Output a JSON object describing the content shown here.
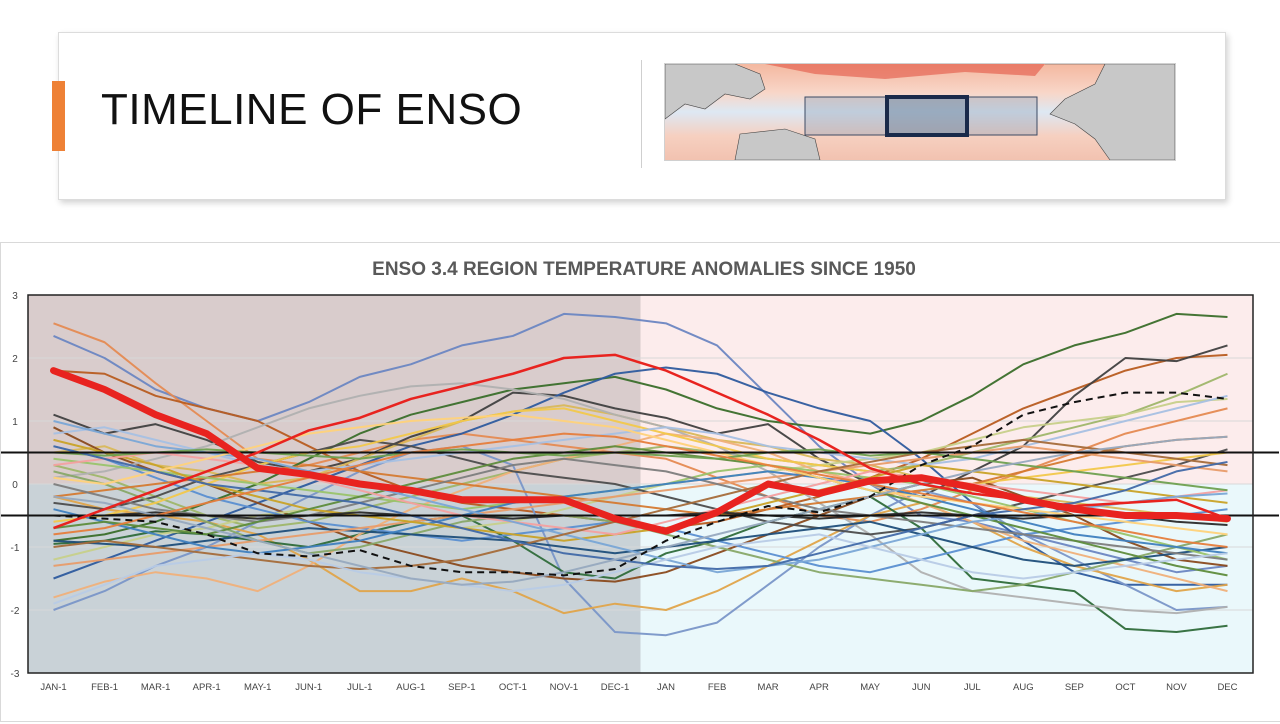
{
  "header": {
    "title": "TIMELINE OF ENSO",
    "accent_color": "#ee8136",
    "map_alt": "Pacific sea surface temperature anomaly map with ENSO 3.4 region box"
  },
  "chart_data": {
    "type": "line",
    "title": "ENSO 3.4 REGION TEMPERATURE ANOMALIES SINCE 1950",
    "xlabel": "",
    "ylabel": "",
    "categories": [
      "JAN-1",
      "FEB-1",
      "MAR-1",
      "APR-1",
      "MAY-1",
      "JUN-1",
      "JUL-1",
      "AUG-1",
      "SEP-1",
      "OCT-1",
      "NOV-1",
      "DEC-1",
      "JAN",
      "FEB",
      "MAR",
      "APR",
      "MAY",
      "JUN",
      "JUL",
      "AUG",
      "SEP",
      "OCT",
      "NOV",
      "DEC"
    ],
    "ylim": [
      -3,
      3
    ],
    "yticks": [
      "3",
      "2",
      "1",
      "0",
      "-1",
      "-2",
      "-3"
    ],
    "thresholds": [
      0.5,
      -0.5
    ],
    "background_regions": [
      {
        "from_index": 0,
        "to_index": 11.5,
        "top_color": "#d9cccc",
        "bottom_color": "#c9d2d7"
      },
      {
        "from_index": 11.5,
        "to_index": 23,
        "top_color": "#fcecec",
        "bottom_color": "#eaf8fb"
      }
    ],
    "highlight_series": {
      "name": "current",
      "color": "#e8231f",
      "values": [
        1.8,
        1.5,
        1.1,
        0.8,
        0.25,
        0.15,
        0.0,
        -0.1,
        -0.25,
        -0.25,
        -0.25,
        -0.55,
        -0.75,
        -0.45,
        0.0,
        -0.15,
        0.05,
        0.1,
        -0.05,
        -0.25,
        -0.4,
        -0.5,
        -0.5,
        -0.55
      ]
    },
    "secondary_red_series": {
      "name": "red-thin",
      "color": "#e8231f",
      "values": [
        -0.7,
        -0.4,
        -0.1,
        0.2,
        0.5,
        0.85,
        1.05,
        1.35,
        1.55,
        1.75,
        2.0,
        2.05,
        1.8,
        1.45,
        1.1,
        0.7,
        0.25,
        0.0,
        -0.15,
        -0.25,
        -0.35,
        -0.3,
        -0.25,
        -0.55
      ]
    },
    "dashed_series": {
      "name": "dashed",
      "color": "#111111",
      "values": [
        -0.5,
        -0.55,
        -0.6,
        -0.8,
        -1.1,
        -1.15,
        -1.05,
        -1.3,
        -1.4,
        -1.4,
        -1.45,
        -1.35,
        -0.9,
        -0.6,
        -0.35,
        -0.45,
        -0.2,
        0.3,
        0.6,
        1.1,
        1.3,
        1.45,
        1.45,
        1.35
      ]
    },
    "series": [
      {
        "color": "#6b86c2",
        "values": [
          2.35,
          2.0,
          1.5,
          1.2,
          1.0,
          1.3,
          1.7,
          1.9,
          2.2,
          2.35,
          2.7,
          2.65,
          2.55,
          2.2,
          1.4,
          0.6,
          0.0,
          -0.5,
          -0.6,
          -0.8,
          -1.0,
          -1.2,
          -1.4,
          -1.3
        ]
      },
      {
        "color": "#e58a52",
        "values": [
          2.55,
          2.25,
          1.6,
          1.0,
          0.4,
          0.3,
          0.5,
          0.7,
          0.8,
          0.7,
          0.6,
          0.5,
          0.4,
          0.1,
          -0.2,
          -0.5,
          -0.6,
          -0.4,
          -0.1,
          0.2,
          0.5,
          0.8,
          1.0,
          1.2
        ]
      },
      {
        "color": "#b85c20",
        "values": [
          1.8,
          1.75,
          1.4,
          1.2,
          1.0,
          0.6,
          0.2,
          -0.1,
          -0.3,
          -0.4,
          -0.5,
          -0.6,
          -0.7,
          -0.6,
          -0.4,
          -0.2,
          0.1,
          0.4,
          0.8,
          1.2,
          1.5,
          1.8,
          2.0,
          2.05
        ]
      },
      {
        "color": "#404040",
        "values": [
          1.1,
          0.8,
          0.95,
          0.7,
          0.35,
          0.2,
          0.4,
          0.75,
          1.0,
          1.45,
          1.4,
          1.2,
          1.05,
          0.8,
          0.95,
          0.4,
          0.0,
          -0.2,
          0.2,
          0.6,
          1.4,
          2.0,
          1.95,
          2.2
        ]
      },
      {
        "color": "#3a6e2a",
        "values": [
          -0.9,
          -0.8,
          -0.6,
          -0.3,
          0.0,
          0.4,
          0.8,
          1.1,
          1.3,
          1.5,
          1.6,
          1.7,
          1.5,
          1.2,
          1.0,
          0.9,
          0.8,
          1.0,
          1.4,
          1.9,
          2.2,
          2.4,
          2.7,
          2.65
        ]
      },
      {
        "color": "#9fb66a",
        "values": [
          0.3,
          0.1,
          -0.2,
          -0.5,
          -0.7,
          -0.6,
          -0.4,
          -0.2,
          0.0,
          0.2,
          0.4,
          0.5,
          0.6,
          0.5,
          0.4,
          0.3,
          0.2,
          0.3,
          0.5,
          0.7,
          0.9,
          1.1,
          1.4,
          1.75
        ]
      },
      {
        "color": "#2e5b9e",
        "values": [
          -1.5,
          -1.2,
          -0.9,
          -0.6,
          -0.3,
          0.0,
          0.3,
          0.6,
          0.8,
          1.1,
          1.45,
          1.75,
          1.85,
          1.75,
          1.45,
          1.2,
          1.0,
          0.4,
          -0.3,
          -0.9,
          -1.4,
          -1.6,
          -1.6,
          -1.6
        ]
      },
      {
        "color": "#7a96c8",
        "values": [
          -2.0,
          -1.7,
          -1.3,
          -1.0,
          -0.6,
          -0.2,
          0.2,
          0.5,
          0.6,
          0.3,
          -1.5,
          -2.35,
          -2.4,
          -2.2,
          -1.6,
          -1.0,
          -0.5,
          -0.1,
          -0.3,
          -0.8,
          -1.2,
          -1.6,
          -2.0,
          -1.95
        ]
      },
      {
        "color": "#e0a44a",
        "values": [
          -0.2,
          -0.4,
          -0.5,
          -0.6,
          -0.8,
          -1.2,
          -1.7,
          -1.7,
          -1.5,
          -1.7,
          -2.05,
          -1.9,
          -2.0,
          -1.7,
          -1.3,
          -0.9,
          -0.5,
          -0.3,
          -0.6,
          -1.0,
          -1.3,
          -1.5,
          -1.7,
          -1.6
        ]
      },
      {
        "color": "#2f6b3a",
        "values": [
          -0.95,
          -0.9,
          -0.75,
          -0.8,
          -0.9,
          -1.0,
          -0.8,
          -0.6,
          -0.5,
          -0.9,
          -1.4,
          -1.5,
          -1.1,
          -0.9,
          -0.6,
          -0.4,
          -0.2,
          -0.7,
          -1.5,
          -1.6,
          -1.7,
          -2.3,
          -2.35,
          -2.25
        ]
      },
      {
        "color": "#d9b85a",
        "values": [
          0.5,
          0.6,
          0.3,
          0.2,
          0.0,
          0.1,
          0.4,
          0.7,
          1.0,
          1.15,
          1.25,
          1.1,
          0.9,
          0.7,
          0.6,
          0.4,
          0.3,
          0.1,
          -0.1,
          -0.2,
          -0.3,
          -0.4,
          -0.5,
          -0.6
        ]
      },
      {
        "color": "#8a4a1e",
        "values": [
          0.9,
          0.5,
          0.2,
          0.0,
          -0.3,
          -0.6,
          -0.9,
          -1.1,
          -1.3,
          -1.4,
          -1.5,
          -1.55,
          -1.4,
          -1.1,
          -0.8,
          -0.5,
          -0.2,
          0.0,
          0.1,
          -0.2,
          -0.5,
          -0.9,
          -1.2,
          -1.3
        ]
      },
      {
        "color": "#c7d08a",
        "values": [
          -1.2,
          -1.0,
          -0.8,
          -0.7,
          -0.5,
          -0.4,
          -0.5,
          -0.6,
          -0.7,
          -0.6,
          -0.4,
          -0.2,
          0.0,
          0.1,
          0.2,
          0.3,
          0.4,
          0.5,
          0.7,
          0.9,
          1.0,
          1.1,
          1.3,
          1.35
        ]
      },
      {
        "color": "#b0b0b0",
        "values": [
          0.1,
          0.2,
          0.4,
          0.6,
          0.9,
          1.2,
          1.4,
          1.55,
          1.6,
          1.5,
          1.35,
          1.1,
          0.9,
          0.6,
          0.2,
          -0.3,
          -0.8,
          -1.4,
          -1.7,
          -1.8,
          -1.9,
          -2.0,
          -2.05,
          -1.95
        ]
      },
      {
        "color": "#5b8fd1",
        "values": [
          0.6,
          0.4,
          0.1,
          -0.2,
          -0.4,
          -0.6,
          -0.7,
          -0.8,
          -0.9,
          -0.8,
          -0.7,
          -0.6,
          -0.7,
          -0.9,
          -1.1,
          -1.3,
          -1.4,
          -1.2,
          -1.0,
          -0.8,
          -0.7,
          -0.6,
          -0.5,
          -0.4
        ]
      },
      {
        "color": "#f0b07a",
        "values": [
          -1.8,
          -1.55,
          -1.4,
          -1.5,
          -1.7,
          -1.3,
          -0.8,
          -0.4,
          -0.1,
          0.2,
          0.4,
          0.6,
          0.8,
          0.7,
          0.5,
          0.2,
          0.0,
          -0.3,
          -0.6,
          -0.9,
          -1.1,
          -1.3,
          -1.5,
          -1.7
        ]
      },
      {
        "color": "#4c4c4c",
        "values": [
          -0.3,
          -0.4,
          -0.2,
          0.1,
          0.3,
          0.5,
          0.7,
          0.6,
          0.4,
          0.2,
          0.1,
          0.0,
          -0.2,
          -0.4,
          -0.6,
          -0.7,
          -0.8,
          -0.7,
          -0.5,
          -0.3,
          -0.1,
          0.1,
          0.3,
          0.55
        ]
      },
      {
        "color": "#88a868",
        "values": [
          0.2,
          0.0,
          -0.3,
          -0.6,
          -0.9,
          -1.1,
          -1.0,
          -0.8,
          -0.6,
          -0.5,
          -0.5,
          -0.6,
          -0.8,
          -1.0,
          -1.2,
          -1.4,
          -1.5,
          -1.6,
          -1.7,
          -1.6,
          -1.4,
          -1.2,
          -1.0,
          -0.8
        ]
      },
      {
        "color": "#f2c84b",
        "values": [
          -0.6,
          -0.5,
          -0.3,
          0.0,
          0.3,
          0.5,
          0.6,
          0.8,
          1.0,
          1.15,
          1.2,
          1.0,
          0.8,
          0.6,
          0.4,
          0.3,
          0.2,
          0.1,
          0.0,
          0.1,
          0.2,
          0.3,
          0.4,
          0.5
        ]
      },
      {
        "color": "#a7c0e3",
        "values": [
          0.8,
          0.9,
          0.7,
          0.5,
          0.3,
          0.2,
          0.3,
          0.4,
          0.5,
          0.6,
          0.7,
          0.8,
          0.9,
          0.8,
          0.6,
          0.5,
          0.4,
          0.3,
          0.4,
          0.6,
          0.8,
          1.0,
          1.2,
          1.4
        ]
      },
      {
        "color": "#d57a32",
        "values": [
          -0.2,
          -0.1,
          0.0,
          0.1,
          0.2,
          0.3,
          0.2,
          0.1,
          0.0,
          -0.1,
          -0.2,
          -0.3,
          -0.4,
          -0.5,
          -0.4,
          -0.3,
          -0.2,
          -0.1,
          0.0,
          0.2,
          0.4,
          0.6,
          0.7,
          0.75
        ]
      },
      {
        "color": "#1f4e7a",
        "values": [
          -0.9,
          -0.95,
          -1.0,
          -0.9,
          -0.8,
          -0.7,
          -0.75,
          -0.8,
          -0.85,
          -0.9,
          -1.0,
          -1.1,
          -1.0,
          -0.9,
          -0.8,
          -0.7,
          -0.6,
          -0.8,
          -1.0,
          -1.2,
          -1.3,
          -1.2,
          -1.1,
          -1.0
        ]
      },
      {
        "color": "#9ac36b",
        "values": [
          0.4,
          0.3,
          0.2,
          0.1,
          0.0,
          -0.1,
          -0.2,
          -0.3,
          -0.4,
          -0.3,
          -0.2,
          -0.1,
          0.0,
          0.2,
          0.3,
          0.2,
          0.1,
          0.0,
          -0.2,
          -0.4,
          -0.6,
          -0.8,
          -1.0,
          -1.2
        ]
      },
      {
        "color": "#e89c6a",
        "values": [
          -1.3,
          -1.2,
          -1.1,
          -1.0,
          -0.9,
          -0.8,
          -0.7,
          -0.6,
          -0.5,
          -0.4,
          -0.3,
          -0.2,
          -0.1,
          0.0,
          0.1,
          0.2,
          0.3,
          0.4,
          0.5,
          0.6,
          0.5,
          0.4,
          0.3,
          0.2
        ]
      },
      {
        "color": "#7d7d7d",
        "values": [
          0.0,
          -0.2,
          -0.4,
          -0.5,
          -0.6,
          -0.5,
          -0.3,
          -0.1,
          0.1,
          0.3,
          0.4,
          0.3,
          0.2,
          0.0,
          -0.2,
          -0.4,
          -0.5,
          -0.6,
          -0.7,
          -0.8,
          -0.9,
          -1.0,
          -1.1,
          -1.2
        ]
      },
      {
        "color": "#3f7fbf",
        "values": [
          -0.4,
          -0.6,
          -0.8,
          -1.0,
          -1.1,
          -1.0,
          -0.9,
          -0.7,
          -0.5,
          -0.3,
          -0.2,
          -0.1,
          0.0,
          0.1,
          0.2,
          0.1,
          0.0,
          -0.2,
          -0.4,
          -0.6,
          -0.8,
          -0.9,
          -1.0,
          -1.1
        ]
      },
      {
        "color": "#c9a227",
        "values": [
          0.7,
          0.5,
          0.3,
          0.0,
          -0.2,
          -0.4,
          -0.5,
          -0.6,
          -0.7,
          -0.8,
          -0.9,
          -0.8,
          -0.7,
          -0.5,
          -0.3,
          -0.1,
          0.1,
          0.3,
          0.2,
          0.1,
          0.0,
          -0.1,
          -0.2,
          -0.3
        ]
      },
      {
        "color": "#5e8c3c",
        "values": [
          -0.7,
          -0.6,
          -0.7,
          -0.8,
          -0.6,
          -0.4,
          -0.2,
          0.0,
          0.2,
          0.4,
          0.5,
          0.6,
          0.5,
          0.4,
          0.3,
          0.1,
          -0.1,
          -0.3,
          -0.5,
          -0.7,
          -0.9,
          -1.1,
          -1.3,
          -1.45
        ]
      },
      {
        "color": "#f4a0a0",
        "values": [
          0.3,
          0.4,
          0.5,
          0.4,
          0.3,
          0.1,
          -0.1,
          -0.3,
          -0.5,
          -0.6,
          -0.7,
          -0.8,
          -0.6,
          -0.4,
          -0.2,
          0.0,
          0.2,
          0.1,
          0.0,
          -0.1,
          -0.2,
          -0.3,
          -0.2,
          -0.1
        ]
      },
      {
        "color": "#7aa6d6",
        "values": [
          1.0,
          0.8,
          0.6,
          0.5,
          0.4,
          0.2,
          0.0,
          -0.2,
          -0.4,
          -0.6,
          -0.8,
          -1.0,
          -1.2,
          -1.4,
          -1.3,
          -1.2,
          -1.0,
          -0.8,
          -0.6,
          -0.5,
          -0.4,
          -0.3,
          -0.2,
          -0.15
        ]
      },
      {
        "color": "#a56b3a",
        "values": [
          -1.0,
          -0.9,
          -1.0,
          -1.1,
          -1.2,
          -1.3,
          -1.35,
          -1.3,
          -1.2,
          -1.0,
          -0.8,
          -0.6,
          -0.4,
          -0.2,
          0.0,
          0.2,
          0.35,
          0.5,
          0.6,
          0.7,
          0.6,
          0.5,
          0.4,
          0.3
        ]
      },
      {
        "color": "#b8cbe6",
        "values": [
          -1.9,
          -1.6,
          -1.3,
          -1.2,
          -1.1,
          -1.2,
          -1.4,
          -1.5,
          -1.6,
          -1.7,
          -1.6,
          -1.4,
          -1.2,
          -1.0,
          -0.9,
          -0.8,
          -1.0,
          -1.2,
          -1.4,
          -1.5,
          -1.4,
          -1.3,
          -1.2,
          -1.1
        ]
      },
      {
        "color": "#ffd27a",
        "values": [
          0.1,
          0.0,
          0.2,
          0.4,
          0.6,
          0.8,
          0.9,
          1.0,
          1.05,
          1.1,
          1.0,
          0.9,
          0.7,
          0.5,
          0.3,
          0.1,
          -0.1,
          -0.2,
          -0.3,
          -0.4,
          -0.5,
          -0.6,
          -0.7,
          -0.8
        ]
      },
      {
        "color": "#2a2a2a",
        "values": [
          -0.5,
          -0.5,
          -0.45,
          -0.5,
          -0.55,
          -0.5,
          -0.45,
          -0.5,
          -0.5,
          -0.55,
          -0.5,
          -0.5,
          -0.5,
          -0.45,
          -0.5,
          -0.55,
          -0.5,
          -0.45,
          -0.5,
          -0.55,
          -0.5,
          -0.5,
          -0.6,
          -0.65
        ]
      },
      {
        "color": "#6fa050",
        "values": [
          0.5,
          0.45,
          0.5,
          0.55,
          0.5,
          0.45,
          0.4,
          0.5,
          0.55,
          0.5,
          0.45,
          0.5,
          0.45,
          0.4,
          0.5,
          0.55,
          0.45,
          0.5,
          0.4,
          0.3,
          0.2,
          0.1,
          0.0,
          -0.1
        ]
      },
      {
        "color": "#4169a8",
        "values": [
          0.6,
          0.4,
          0.2,
          0.0,
          -0.1,
          -0.2,
          -0.3,
          -0.5,
          -0.7,
          -0.9,
          -1.1,
          -1.2,
          -1.3,
          -1.35,
          -1.3,
          -1.1,
          -0.9,
          -0.7,
          -0.5,
          -0.4,
          -0.3,
          -0.1,
          0.2,
          0.35
        ]
      },
      {
        "color": "#e67d3c",
        "values": [
          -0.8,
          -0.7,
          -0.5,
          -0.3,
          -0.1,
          0.1,
          0.3,
          0.5,
          0.6,
          0.7,
          0.8,
          0.75,
          0.6,
          0.45,
          0.3,
          0.15,
          0.0,
          -0.15,
          -0.3,
          -0.45,
          -0.6,
          -0.75,
          -0.9,
          -1.0
        ]
      },
      {
        "color": "#97a9bf",
        "values": [
          -0.2,
          -0.3,
          -0.5,
          -0.7,
          -0.9,
          -1.1,
          -1.3,
          -1.5,
          -1.6,
          -1.55,
          -1.4,
          -1.2,
          -1.0,
          -0.8,
          -0.6,
          -0.4,
          -0.2,
          0.0,
          0.2,
          0.35,
          0.5,
          0.6,
          0.7,
          0.75
        ]
      }
    ]
  }
}
